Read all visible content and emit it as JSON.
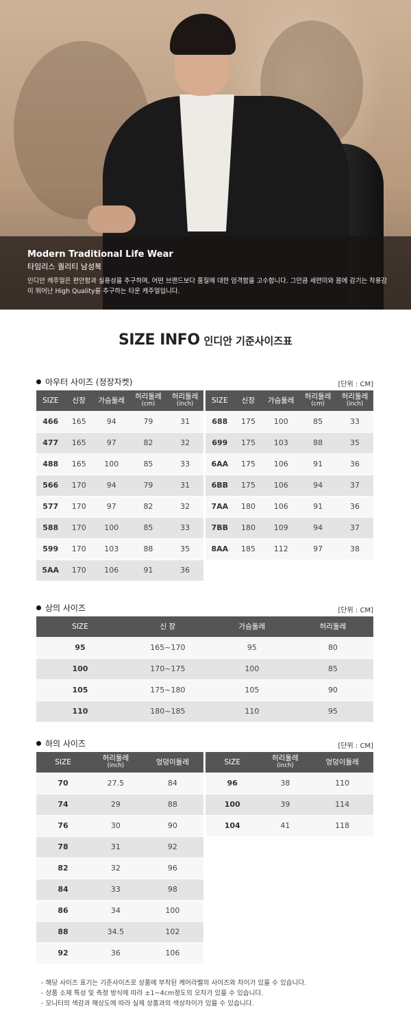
{
  "hero": {
    "title": "Modern Traditional Life Wear",
    "subtitle": "타임리스 퀄리티 남성복",
    "description": "인디안 캐주얼은 편안함과 실용성을 추구하며, 어떤 브랜드보다 품질에 대한 엄격함을 고수합니다. 그만큼 세련미와 몸에 감기는 착용감이 뛰어난 High Quality를 추구하는 타운 캐주얼입니다."
  },
  "heading": {
    "en": "SIZE INFO",
    "ko": "인디안 기준사이즈표"
  },
  "outer": {
    "title": "아우터 사이즈 (정장자켓)",
    "unit": "[단위 : CM]",
    "headers": [
      {
        "l": "SIZE",
        "s": ""
      },
      {
        "l": "신장",
        "s": ""
      },
      {
        "l": "가슴둘레",
        "s": ""
      },
      {
        "l": "허리둘레",
        "s": "(cm)"
      },
      {
        "l": "허리둘레",
        "s": "(inch)"
      }
    ],
    "left": [
      [
        "466",
        "165",
        "94",
        "79",
        "31"
      ],
      [
        "477",
        "165",
        "97",
        "82",
        "32"
      ],
      [
        "488",
        "165",
        "100",
        "85",
        "33"
      ],
      [
        "566",
        "170",
        "94",
        "79",
        "31"
      ],
      [
        "577",
        "170",
        "97",
        "82",
        "32"
      ],
      [
        "588",
        "170",
        "100",
        "85",
        "33"
      ],
      [
        "599",
        "170",
        "103",
        "88",
        "35"
      ],
      [
        "5AA",
        "170",
        "106",
        "91",
        "36"
      ]
    ],
    "right": [
      [
        "688",
        "175",
        "100",
        "85",
        "33"
      ],
      [
        "699",
        "175",
        "103",
        "88",
        "35"
      ],
      [
        "6AA",
        "175",
        "106",
        "91",
        "36"
      ],
      [
        "6BB",
        "175",
        "106",
        "94",
        "37"
      ],
      [
        "7AA",
        "180",
        "106",
        "91",
        "36"
      ],
      [
        "7BB",
        "180",
        "109",
        "94",
        "37"
      ],
      [
        "8AA",
        "185",
        "112",
        "97",
        "38"
      ]
    ]
  },
  "top": {
    "title": "상의 사이즈",
    "unit": "[단위 : CM]",
    "headers": [
      "SIZE",
      "신 장",
      "가슴둘레",
      "허리둘레"
    ],
    "rows": [
      [
        "95",
        "165~170",
        "95",
        "80"
      ],
      [
        "100",
        "170~175",
        "100",
        "85"
      ],
      [
        "105",
        "175~180",
        "105",
        "90"
      ],
      [
        "110",
        "180~185",
        "110",
        "95"
      ]
    ]
  },
  "bottom": {
    "title": "하의 사이즈",
    "unit": "[단위 : CM]",
    "headers": [
      {
        "l": "SIZE",
        "s": ""
      },
      {
        "l": "허리둘레",
        "s": "(inch)"
      },
      {
        "l": "엉덩이둘레",
        "s": ""
      }
    ],
    "left": [
      [
        "70",
        "27.5",
        "84"
      ],
      [
        "74",
        "29",
        "88"
      ],
      [
        "76",
        "30",
        "90"
      ],
      [
        "78",
        "31",
        "92"
      ],
      [
        "82",
        "32",
        "96"
      ],
      [
        "84",
        "33",
        "98"
      ],
      [
        "86",
        "34",
        "100"
      ],
      [
        "88",
        "34.5",
        "102"
      ],
      [
        "92",
        "36",
        "106"
      ]
    ],
    "right": [
      [
        "96",
        "38",
        "110"
      ],
      [
        "100",
        "39",
        "114"
      ],
      [
        "104",
        "41",
        "118"
      ]
    ]
  },
  "notes": [
    "- 해당 사이즈 표기는 기준사이즈로 상품에 부착된 케어라벨의 사이즈와 차이가 있을 수 있습니다.",
    "- 상품 소재 특성 및 측정 방식에 따라 ±1~4cm정도의 오차가 있을 수 있습니다.",
    "- 모니터의 색감과 해상도에 따라 실제 상품과의 색상차이가 있을 수 있습니다."
  ]
}
